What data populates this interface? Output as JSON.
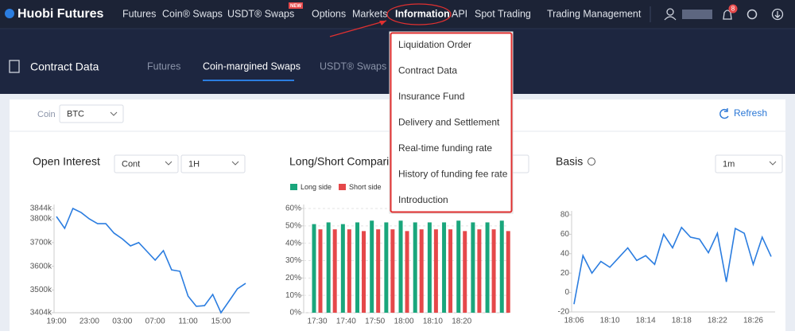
{
  "nav": {
    "logo": "Huobi Futures",
    "items": [
      "Futures",
      "Coin® Swaps",
      "USDT® Swaps",
      "Options",
      "Markets",
      "Information",
      "API",
      "Spot Trading",
      "Trading Management"
    ],
    "badge": "NEW",
    "notifications": "8"
  },
  "menu": {
    "items": [
      "Liquidation Order",
      "Contract Data",
      "Insurance Fund",
      "Delivery and Settlement",
      "Real-time funding rate",
      "History of funding fee rate",
      "Introduction"
    ]
  },
  "header": {
    "title": "Contract Data",
    "tabs": [
      "Futures",
      "Coin-margined Swaps",
      "USDT® Swaps"
    ]
  },
  "filter": {
    "label": "Coin",
    "value": "BTC",
    "refresh": "Refresh"
  },
  "chart_data": [
    {
      "type": "line",
      "title": "Open Interest",
      "controls": [
        "Cont",
        "1H"
      ],
      "color": "#2b7de0",
      "categories": [
        "19:00",
        null,
        null,
        null,
        "23:00",
        null,
        null,
        null,
        "03:00",
        null,
        null,
        null,
        "07:00",
        null,
        null,
        null,
        "11:00",
        null,
        null,
        null,
        "15:00",
        null,
        null,
        null
      ],
      "values": [
        3810,
        3760,
        3844,
        3827,
        3800,
        3780,
        3780,
        3740,
        3716,
        3686,
        3700,
        3663,
        3626,
        3666,
        3585,
        3579,
        3474,
        3431,
        3434,
        3481,
        3404,
        3454,
        3505,
        3528
      ],
      "ylim": [
        3404,
        3844
      ],
      "yticks": [
        {
          "value": 3404,
          "label": "3404k"
        },
        {
          "value": 3500,
          "label": "3500k"
        },
        {
          "value": 3600,
          "label": "3600k"
        },
        {
          "value": 3700,
          "label": "3700k"
        },
        {
          "value": 3800,
          "label": "3800k"
        },
        {
          "value": 3844,
          "label": "3844k"
        }
      ],
      "grid": false
    },
    {
      "type": "bar",
      "title": "Long/Short Comparison",
      "categories": [
        "17:30",
        null,
        "17:40",
        null,
        "17:50",
        null,
        "18:00",
        null,
        "18:10",
        null,
        "18:20",
        null,
        null,
        null
      ],
      "series": [
        {
          "name": "Long side",
          "color": "#1aa67c",
          "values": [
            51,
            52,
            51,
            52,
            53,
            52,
            53,
            52,
            52,
            52,
            53,
            52,
            52,
            53
          ]
        },
        {
          "name": "Short side",
          "color": "#e5484a",
          "values": [
            48,
            48,
            48,
            47,
            48,
            48,
            47,
            48,
            48,
            48,
            47,
            48,
            48,
            47
          ]
        }
      ],
      "ylim": [
        0,
        60
      ],
      "yticks": [
        {
          "value": 0,
          "label": "0%"
        },
        {
          "value": 10,
          "label": "10%"
        },
        {
          "value": 20,
          "label": "20%"
        },
        {
          "value": 30,
          "label": "30%"
        },
        {
          "value": 40,
          "label": "40%"
        },
        {
          "value": 50,
          "label": "50%"
        },
        {
          "value": 60,
          "label": "60%"
        }
      ],
      "grid": true
    },
    {
      "type": "line",
      "title": "Basis",
      "controls": [
        "1m"
      ],
      "color": "#2b7de0",
      "categories": [
        "18:06",
        null,
        null,
        null,
        "18:10",
        null,
        null,
        null,
        "18:14",
        null,
        null,
        null,
        "18:18",
        null,
        null,
        null,
        "18:22",
        null,
        null,
        null,
        "18:26",
        null,
        null
      ],
      "values": [
        -12,
        38,
        20,
        32,
        26,
        36,
        46,
        33,
        38,
        29,
        60,
        46,
        67,
        57,
        55,
        41,
        61,
        11,
        66,
        61,
        29,
        57,
        37
      ],
      "ylim": [
        -20,
        80
      ],
      "yticks": [
        -20,
        0,
        20,
        40,
        60,
        80
      ],
      "grid": false
    }
  ]
}
